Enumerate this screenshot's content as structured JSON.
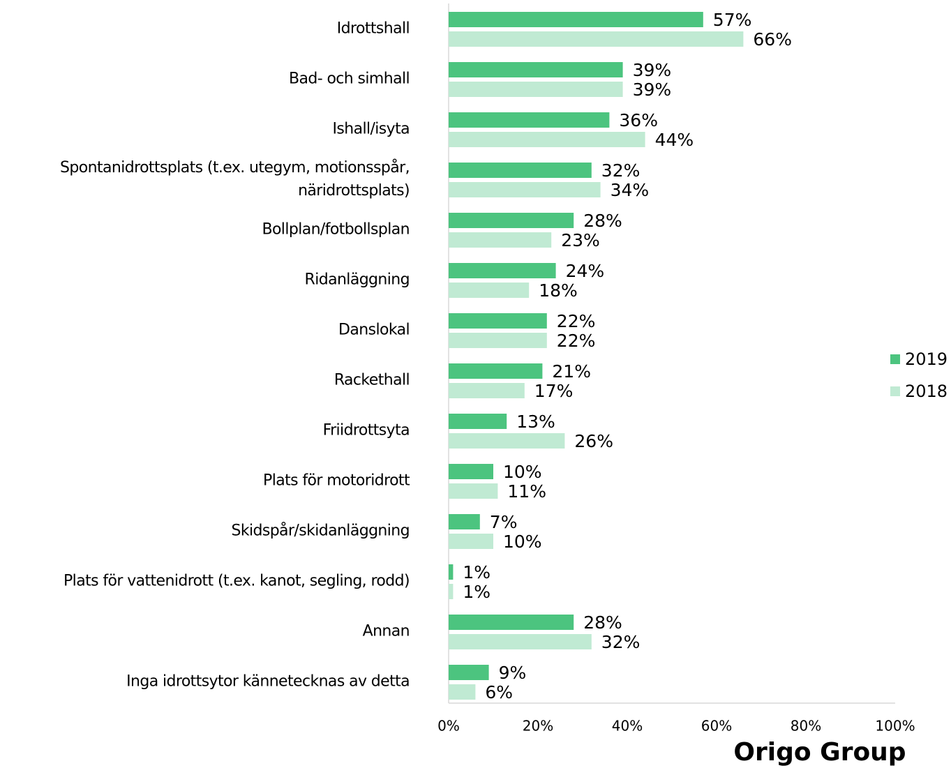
{
  "chart_data": {
    "type": "bar",
    "orientation": "horizontal",
    "categories": [
      "Idrottshall",
      "Bad- och simhall",
      "Ishall/isyta",
      "Spontanidrottsplats (t.ex. utegym, motionsspår, näridrottsplats)",
      "Bollplan/fotbollsplan",
      "Ridanläggning",
      "Danslokal",
      "Rackethall",
      "Friidrottsyta",
      "Plats för motoridrott",
      "Skidspår/skidanläggning",
      "Plats för vattenidrott (t.ex. kanot, segling, rodd)",
      "Annan",
      "Inga idrottsytor kännetecknas av detta"
    ],
    "series": [
      {
        "name": "2019",
        "color": "#4cc47f",
        "values": [
          57,
          39,
          36,
          32,
          28,
          24,
          22,
          21,
          13,
          10,
          7,
          1,
          28,
          9
        ],
        "value_labels": [
          "57%",
          "39%",
          "36%",
          "32%",
          "28%",
          "24%",
          "22%",
          "21%",
          "13%",
          "10%",
          "7%",
          "1%",
          "28%",
          "9%"
        ]
      },
      {
        "name": "2018",
        "color": "#c0ead3",
        "values": [
          66,
          39,
          44,
          34,
          23,
          18,
          22,
          17,
          26,
          11,
          10,
          1,
          32,
          6
        ],
        "value_labels": [
          "66%",
          "39%",
          "44%",
          "34%",
          "23%",
          "18%",
          "22%",
          "17%",
          "26%",
          "11%",
          "10%",
          "1%",
          "32%",
          "6%"
        ]
      }
    ],
    "xlim": [
      0,
      100
    ],
    "xticks": [
      {
        "value": 0,
        "label": "0%"
      },
      {
        "value": 20,
        "label": "20%"
      },
      {
        "value": 40,
        "label": "40%"
      },
      {
        "value": 60,
        "label": "60%"
      },
      {
        "value": 80,
        "label": "80%"
      },
      {
        "value": 100,
        "label": "100%"
      }
    ],
    "legend": "right",
    "logo": "Origo Group"
  }
}
